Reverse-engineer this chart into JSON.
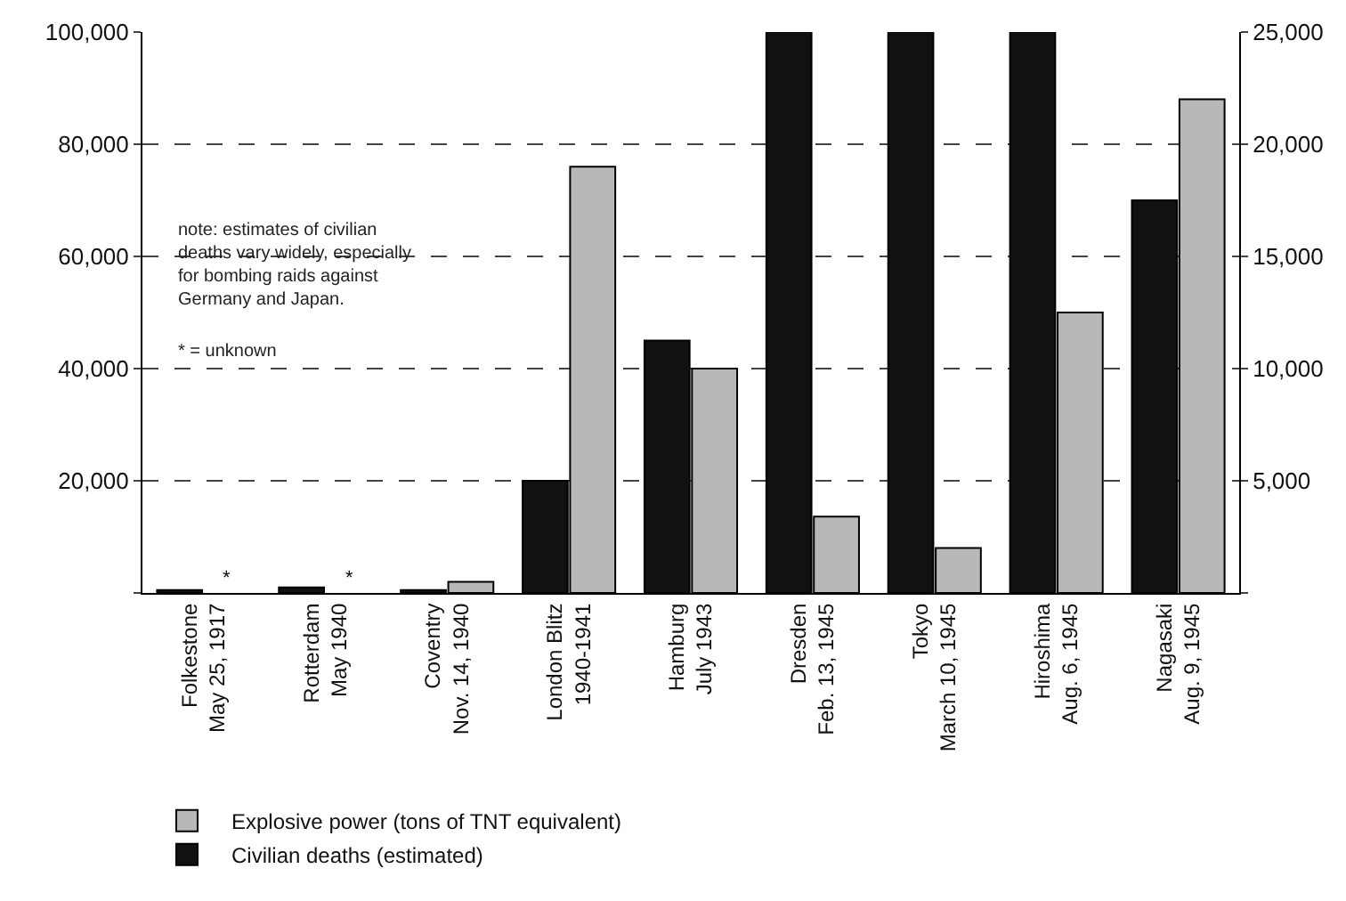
{
  "chart_data": {
    "type": "bar",
    "categories": [
      "Folkestone\nMay 25, 1917",
      "Rotterdam\nMay 1940",
      "Coventry\nNov. 14, 1940",
      "London Blitz\n1940-1941",
      "Hamburg\nJuly 1943",
      "Dresden\nFeb. 13, 1945",
      "Tokyo\nMarch 10, 1945",
      "Hiroshima\nAug. 6, 1945",
      "Nagasaki\nAug. 9, 1945"
    ],
    "series": [
      {
        "name": "Civilian deaths (estimated)",
        "color": "#111111",
        "values": [
          500,
          1000,
          500,
          20000,
          45000,
          100000,
          100000,
          100000,
          70000
        ]
      },
      {
        "name": "Explosive power (tons of TNT equivalent)",
        "color": "#b8b8b8",
        "axis": "y2",
        "values": [
          null,
          null,
          500,
          19000,
          10000,
          3400,
          2000,
          12500,
          22000
        ]
      }
    ],
    "ylim": [
      0,
      100000
    ],
    "yticks": [
      {
        "value": 0,
        "label": null
      },
      {
        "value": 20000,
        "label": "20,000"
      },
      {
        "value": 40000,
        "label": "40,000"
      },
      {
        "value": 60000,
        "label": "60,000"
      },
      {
        "value": 80000,
        "label": "80,000"
      },
      {
        "value": 100000,
        "label": "100,000"
      }
    ],
    "y2lim": [
      0,
      25000
    ],
    "y2ticks": [
      {
        "value": 0,
        "label": null
      },
      {
        "value": 5000,
        "label": "5,000"
      },
      {
        "value": 10000,
        "label": "10,000"
      },
      {
        "value": 15000,
        "label": "15,000"
      },
      {
        "value": 20000,
        "label": "20,000"
      },
      {
        "value": 25000,
        "label": "25,000"
      }
    ],
    "grid": "y",
    "line_style": "dashed",
    "legend": "bottom left",
    "annotations": [
      "note: estimates of civilian\ndeaths vary widely, especially\nfor bombing raids against\nGermany and Japan.",
      "* = unknown",
      {
        "text": "*",
        "x": "Folkestone\nMay 25, 1917",
        "y": 0
      },
      {
        "text": "*",
        "x": "Rotterdam\nMay 1940",
        "y": 0
      }
    ]
  }
}
